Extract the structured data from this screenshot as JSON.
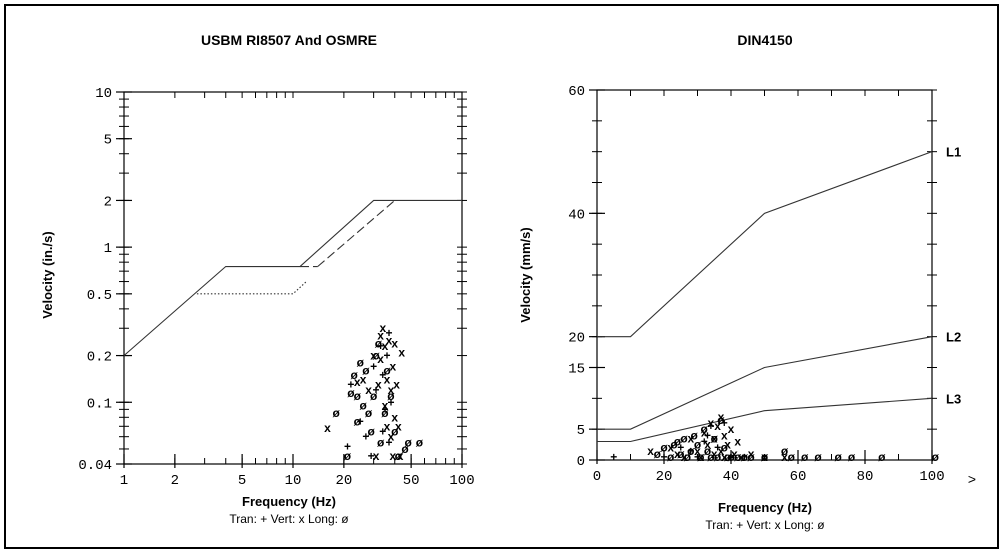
{
  "chart_data": [
    {
      "type": "line",
      "title": "USBM RI8507 And OSMRE",
      "xlabel": "Frequency (Hz)",
      "ylabel": "Velocity (in./s)",
      "legend_text": "Tran: +  Vert: x  Long: ø",
      "x_scale": "log",
      "y_scale": "log",
      "xlim": [
        1,
        100
      ],
      "ylim": [
        0.04,
        10
      ],
      "x_ticks": [
        1,
        2,
        5,
        10,
        20,
        50,
        100
      ],
      "x_tick_labels": [
        "1",
        "2",
        "5",
        "10",
        "20",
        "50",
        "100"
      ],
      "y_ticks": [
        0.04,
        0.1,
        0.2,
        0.5,
        1,
        2,
        5,
        10
      ],
      "y_tick_labels": [
        "0.04",
        "0.1",
        "0.2",
        "0.5",
        "1",
        "2",
        "5",
        "10"
      ],
      "series": [
        {
          "style": "solid",
          "x": [
            1,
            4,
            11,
            30,
            100
          ],
          "y": [
            0.2,
            0.75,
            0.75,
            2,
            2
          ]
        },
        {
          "style": "dotted",
          "x": [
            2.7,
            10,
            12
          ],
          "y": [
            0.5,
            0.5,
            0.6
          ]
        },
        {
          "style": "dashed",
          "x": [
            11,
            14
          ],
          "y": [
            0.75,
            0.75
          ]
        },
        {
          "style": "dashed",
          "x": [
            14,
            40
          ],
          "y": [
            0.75,
            2
          ]
        },
        {
          "style": "points",
          "marker": "x",
          "points": [
            [
              16,
              0.068
            ],
            [
              24,
              0.135
            ],
            [
              26,
              0.14
            ],
            [
              28,
              0.12
            ],
            [
              30,
              0.2
            ],
            [
              31,
              0.045
            ],
            [
              32,
              0.13
            ],
            [
              33,
              0.19
            ],
            [
              33,
              0.27
            ],
            [
              34,
              0.3
            ],
            [
              35,
              0.23
            ],
            [
              35,
              0.095
            ],
            [
              36,
              0.14
            ],
            [
              36,
              0.07
            ],
            [
              37,
              0.25
            ],
            [
              38,
              0.12
            ],
            [
              38,
              0.06
            ],
            [
              39,
              0.17
            ],
            [
              39,
              0.045
            ],
            [
              40,
              0.08
            ],
            [
              40,
              0.24
            ],
            [
              41,
              0.13
            ],
            [
              42,
              0.07
            ],
            [
              43,
              0.045
            ],
            [
              44,
              0.21
            ]
          ]
        },
        {
          "style": "points",
          "marker": "+",
          "points": [
            [
              21,
              0.052
            ],
            [
              22,
              0.13
            ],
            [
              25,
              0.075
            ],
            [
              27,
              0.06
            ],
            [
              29,
              0.045
            ],
            [
              30,
              0.17
            ],
            [
              31,
              0.12
            ],
            [
              33,
              0.23
            ],
            [
              34,
              0.065
            ],
            [
              34,
              0.15
            ],
            [
              35,
              0.09
            ],
            [
              36,
              0.2
            ],
            [
              37,
              0.055
            ],
            [
              37,
              0.28
            ],
            [
              38,
              0.1
            ]
          ]
        },
        {
          "style": "points",
          "marker": "ø",
          "points": [
            [
              18,
              0.085
            ],
            [
              21,
              0.045
            ],
            [
              22,
              0.115
            ],
            [
              23,
              0.15
            ],
            [
              24,
              0.11
            ],
            [
              24,
              0.075
            ],
            [
              25,
              0.18
            ],
            [
              26,
              0.095
            ],
            [
              27,
              0.16
            ],
            [
              28,
              0.085
            ],
            [
              29,
              0.065
            ],
            [
              30,
              0.11
            ],
            [
              31,
              0.2
            ],
            [
              32,
              0.24
            ],
            [
              33,
              0.055
            ],
            [
              35,
              0.085
            ],
            [
              36,
              0.16
            ],
            [
              38,
              0.11
            ],
            [
              40,
              0.065
            ],
            [
              42,
              0.045
            ],
            [
              46,
              0.05
            ],
            [
              48,
              0.055
            ],
            [
              56,
              0.055
            ]
          ]
        }
      ]
    },
    {
      "type": "line",
      "title": "DIN4150",
      "xlabel": "Frequency (Hz)",
      "ylabel": "Velocity (mm/s)",
      "legend_text": "Tran: +  Vert: x  Long: ø",
      "x_scale": "linear",
      "y_scale": "linear",
      "xlim": [
        0,
        100
      ],
      "ylim": [
        0,
        60
      ],
      "x_ticks": [
        0,
        20,
        40,
        60,
        80,
        100
      ],
      "x_tick_labels": [
        "0",
        "20",
        "40",
        "60",
        "80",
        "100"
      ],
      "x_overflow_label": ">",
      "y_ticks": [
        0,
        5,
        15,
        20,
        40,
        60
      ],
      "y_tick_labels": [
        "0",
        "5",
        "15",
        "20",
        "40",
        "60"
      ],
      "series": [
        {
          "name": "L1",
          "style": "solid",
          "x": [
            0,
            10,
            50,
            100
          ],
          "y": [
            20,
            20,
            40,
            50
          ]
        },
        {
          "name": "L2",
          "style": "solid",
          "x": [
            0,
            10,
            50,
            100
          ],
          "y": [
            5,
            5,
            15,
            20
          ]
        },
        {
          "name": "L3",
          "style": "solid",
          "x": [
            0,
            10,
            50,
            100
          ],
          "y": [
            3,
            3,
            8,
            10
          ]
        },
        {
          "style": "points",
          "marker": "x",
          "points": [
            [
              16,
              1.5
            ],
            [
              22,
              2
            ],
            [
              24,
              1
            ],
            [
              26,
              0.5
            ],
            [
              28,
              3.5
            ],
            [
              30,
              1.5
            ],
            [
              31,
              0.5
            ],
            [
              32,
              4.5
            ],
            [
              33,
              2.5
            ],
            [
              34,
              6
            ],
            [
              35,
              1
            ],
            [
              35,
              3.5
            ],
            [
              36,
              5.5
            ],
            [
              37,
              7
            ],
            [
              37,
              1.5
            ],
            [
              38,
              4
            ],
            [
              38,
              0.5
            ],
            [
              39,
              2.5
            ],
            [
              40,
              5
            ],
            [
              41,
              1
            ],
            [
              42,
              3
            ],
            [
              43,
              0.5
            ],
            [
              46,
              1
            ],
            [
              50,
              0.5
            ],
            [
              56,
              0.5
            ]
          ]
        },
        {
          "style": "points",
          "marker": "+",
          "points": [
            [
              5,
              0.5
            ],
            [
              20,
              0.5
            ],
            [
              25,
              2
            ],
            [
              28,
              1.5
            ],
            [
              30,
              0.5
            ],
            [
              32,
              3
            ],
            [
              33,
              4
            ],
            [
              34,
              5.5
            ],
            [
              36,
              2
            ],
            [
              38,
              6
            ],
            [
              40,
              0.5
            ],
            [
              44,
              0.5
            ]
          ]
        },
        {
          "style": "points",
          "marker": "ø",
          "points": [
            [
              18,
              1
            ],
            [
              20,
              2
            ],
            [
              22,
              0.5
            ],
            [
              23,
              2.5
            ],
            [
              24,
              3
            ],
            [
              25,
              1
            ],
            [
              26,
              3.5
            ],
            [
              27,
              0.5
            ],
            [
              28,
              1.5
            ],
            [
              29,
              4
            ],
            [
              30,
              2.5
            ],
            [
              31,
              0.5
            ],
            [
              32,
              5
            ],
            [
              33,
              1.5
            ],
            [
              34,
              0.5
            ],
            [
              35,
              3.5
            ],
            [
              36,
              0.5
            ],
            [
              37,
              6.5
            ],
            [
              38,
              2
            ],
            [
              39,
              0.5
            ],
            [
              40,
              0.5
            ],
            [
              42,
              0.5
            ],
            [
              44,
              0.5
            ],
            [
              46,
              0.5
            ],
            [
              50,
              0.5
            ],
            [
              56,
              1.5
            ],
            [
              58,
              0.5
            ],
            [
              62,
              0.5
            ],
            [
              66,
              0.5
            ],
            [
              72,
              0.5
            ],
            [
              76,
              0.5
            ],
            [
              85,
              0.5
            ],
            [
              101,
              0.5
            ]
          ]
        }
      ]
    }
  ]
}
